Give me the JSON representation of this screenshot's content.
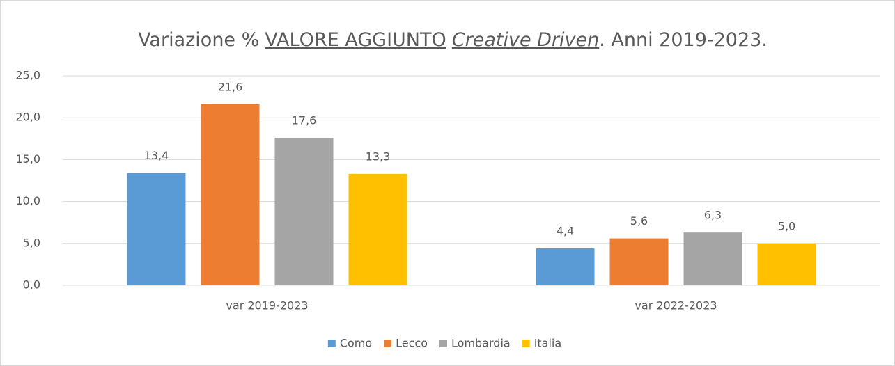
{
  "chart_data": {
    "type": "bar",
    "title": [
      {
        "text": "Variazione %"
      },
      {
        "text": "VALORE AGGIUNTO",
        "underline": true
      },
      {
        "text": "Creative Driven",
        "italic": true,
        "underline": true
      },
      {
        "text": ". Anni 2019-2023."
      }
    ],
    "categories": [
      "var 2019-2023",
      "var 2022-2023"
    ],
    "series": [
      {
        "name": "Como",
        "color": "#5b9bd5",
        "values": [
          13.4,
          4.4
        ],
        "value_labels": [
          "13,4",
          "4,4"
        ]
      },
      {
        "name": "Lecco",
        "color": "#ed7d31",
        "values": [
          21.6,
          5.6
        ],
        "value_labels": [
          "21,6",
          "5,6"
        ]
      },
      {
        "name": "Lombardia",
        "color": "#a5a5a5",
        "values": [
          17.6,
          6.3
        ],
        "value_labels": [
          "17,6",
          "6,3"
        ]
      },
      {
        "name": "Italia",
        "color": "#ffc000",
        "values": [
          13.3,
          5.0
        ],
        "value_labels": [
          "13,3",
          "5,0"
        ]
      }
    ],
    "ylim": [
      0,
      25
    ],
    "yticks": [
      {
        "value": 0,
        "label": "0,0"
      },
      {
        "value": 5,
        "label": "5,0"
      },
      {
        "value": 10,
        "label": "10,0"
      },
      {
        "value": 15,
        "label": "15,0"
      },
      {
        "value": 20,
        "label": "20,0"
      },
      {
        "value": 25,
        "label": "25,0"
      }
    ],
    "grid": true,
    "legend": "bottom"
  }
}
